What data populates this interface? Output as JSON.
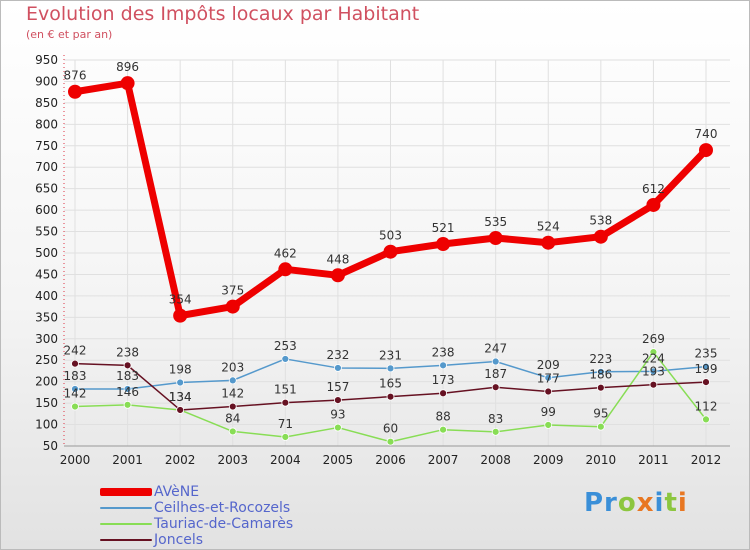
{
  "header": {
    "title": "Evolution des Impôts locaux par Habitant",
    "subtitle": "(en € et par an)"
  },
  "brand": {
    "text": "Proxiti"
  },
  "colors": {
    "avene": "#ee0000",
    "ceilhes": "#5599cc",
    "tauriac": "#88dd55",
    "joncels": "#661122",
    "grid": "#e0e0e0",
    "axis_text": "#222222"
  },
  "chart_data": {
    "type": "line",
    "title": "Evolution des Impôts locaux par Habitant",
    "subtitle": "(en € et par an)",
    "xlabel": "",
    "ylabel": "",
    "x": [
      "2000",
      "2001",
      "2002",
      "2003",
      "2004",
      "2005",
      "2006",
      "2007",
      "2008",
      "2009",
      "2010",
      "2011",
      "2012"
    ],
    "ylim": [
      50,
      950
    ],
    "yticks": [
      50,
      100,
      150,
      200,
      250,
      300,
      350,
      400,
      450,
      500,
      550,
      600,
      650,
      700,
      750,
      800,
      850,
      900,
      950
    ],
    "grid": true,
    "legend_position": "bottom-left",
    "series": [
      {
        "name": "AVèNE",
        "key": "avene",
        "values": [
          876,
          896,
          354,
          375,
          462,
          448,
          503,
          521,
          535,
          524,
          538,
          612,
          740
        ]
      },
      {
        "name": "Ceilhes-et-Rocozels",
        "key": "ceilhes",
        "values": [
          183,
          183,
          198,
          203,
          253,
          232,
          231,
          238,
          247,
          209,
          223,
          224,
          235
        ]
      },
      {
        "name": "Tauriac-de-Camarès",
        "key": "tauriac",
        "values": [
          142,
          146,
          134,
          84,
          71,
          93,
          60,
          88,
          83,
          99,
          95,
          269,
          112
        ]
      },
      {
        "name": "Joncels",
        "key": "joncels",
        "values": [
          242,
          238,
          134,
          142,
          151,
          157,
          165,
          173,
          187,
          177,
          186,
          193,
          199
        ]
      }
    ]
  }
}
